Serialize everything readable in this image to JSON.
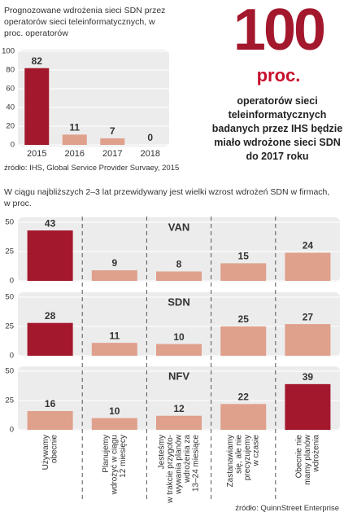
{
  "chart_data": [
    {
      "type": "bar",
      "title": "Prognozowane wdrożenia sieci SDN przez operatorów sieci teleinformatycznych, w proc. operatorów",
      "categories": [
        "2015",
        "2016",
        "2017",
        "2018"
      ],
      "values": [
        82,
        11,
        7,
        0
      ],
      "colors": [
        "#a3182d",
        "#dfa08c",
        "#dfa08c",
        "#dfa08c"
      ],
      "ylim": [
        0,
        100
      ],
      "yticks": [
        0,
        20,
        40,
        60,
        80,
        100
      ],
      "source": "źródło: IHS, Global Service Provider Survaey, 2015"
    },
    {
      "type": "bar",
      "title": "W ciągu najbliższych 2–3 lat przewidywany jest wielki wzrost wdrożeń SDN w firmach, w proc.",
      "categories": [
        [
          "Używamy",
          "obecnie"
        ],
        [
          "Planujemy",
          "wdrożyć w ciągu",
          "12 miesięcy"
        ],
        [
          "Jesteśmy",
          "w trakcie przygoto-",
          "wywania planów",
          "wdrożenia za",
          "13–24 miesiące"
        ],
        [
          "Zastanawiamy",
          "się, ale nie",
          "precyzujemy",
          "w czasie"
        ],
        [
          "Obecnie nie",
          "mamy planów",
          "wdrożenia"
        ]
      ],
      "ylim": [
        0,
        50
      ],
      "yticks": [
        0,
        25,
        50
      ],
      "panels": [
        {
          "title": "VAN",
          "values": [
            43,
            9,
            8,
            15,
            24
          ],
          "colors": [
            "#a3182d",
            "#dfa08c",
            "#dfa08c",
            "#dfa08c",
            "#dfa08c"
          ]
        },
        {
          "title": "SDN",
          "values": [
            28,
            11,
            10,
            25,
            27
          ],
          "colors": [
            "#a3182d",
            "#dfa08c",
            "#dfa08c",
            "#dfa08c",
            "#dfa08c"
          ]
        },
        {
          "title": "NFV",
          "values": [
            16,
            10,
            12,
            22,
            39
          ],
          "colors": [
            "#dfa08c",
            "#dfa08c",
            "#dfa08c",
            "#dfa08c",
            "#a3182d"
          ]
        }
      ],
      "source": "źródło: QuinnStreet Enterprise"
    }
  ],
  "callout": {
    "number": "100",
    "unit": "proc.",
    "text": "operatorów sieci teleinformatycznych badanych przez IHS będzie miało wdrożone sieci SDN do 2017 roku"
  }
}
